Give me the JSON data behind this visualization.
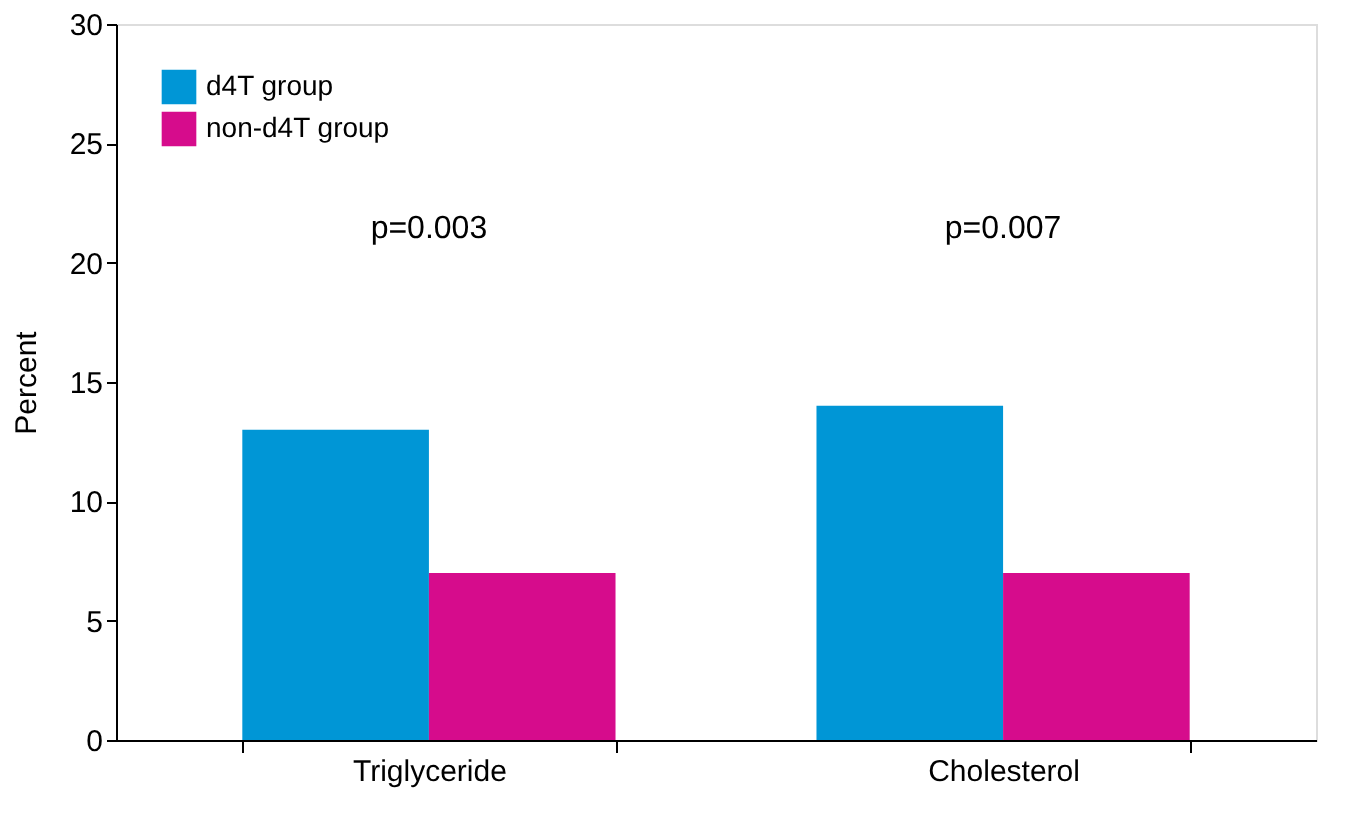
{
  "chart_data": {
    "type": "bar",
    "ylabel": "Percent",
    "categories": [
      "Triglyceride",
      "Cholesterol"
    ],
    "series": [
      {
        "name": "d4T group",
        "color": "#0096d6",
        "values": [
          13,
          14
        ]
      },
      {
        "name": "non-d4T group",
        "color": "#d60c8c",
        "values": [
          7,
          7
        ]
      }
    ],
    "ylim": [
      0,
      30
    ],
    "yticks": [
      0,
      5,
      10,
      15,
      20,
      25,
      30
    ],
    "grid": false,
    "legend": "top left",
    "annotations": [
      "p=0.003",
      "p=0.007"
    ]
  }
}
